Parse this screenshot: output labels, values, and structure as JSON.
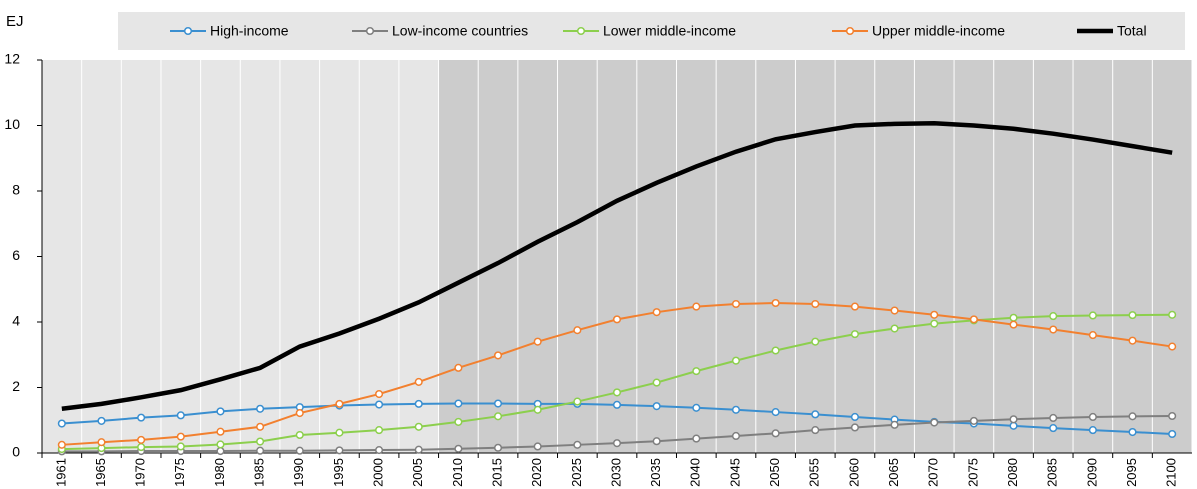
{
  "chart_data": {
    "type": "line",
    "y_label": "EJ",
    "categories": [
      "1961",
      "1965",
      "1970",
      "1975",
      "1980",
      "1985",
      "1990",
      "1995",
      "2000",
      "2005",
      "2010",
      "2015",
      "2020",
      "2025",
      "2030",
      "2035",
      "2040",
      "2045",
      "2050",
      "2055",
      "2060",
      "2065",
      "2070",
      "2075",
      "2080",
      "2085",
      "2090",
      "2095",
      "2100"
    ],
    "projection_from": "2010",
    "ylim": [
      0,
      12
    ],
    "yticks": [
      0,
      2,
      4,
      6,
      8,
      10,
      12
    ],
    "series": [
      {
        "name": "High-income",
        "color": "#3a8fd0",
        "marker": true,
        "values": [
          0.9,
          0.98,
          1.08,
          1.15,
          1.27,
          1.35,
          1.4,
          1.45,
          1.48,
          1.5,
          1.51,
          1.51,
          1.5,
          1.5,
          1.47,
          1.43,
          1.38,
          1.32,
          1.25,
          1.18,
          1.1,
          1.02,
          0.95,
          0.9,
          0.83,
          0.76,
          0.7,
          0.64,
          0.58
        ]
      },
      {
        "name": "Low-income countries",
        "color": "#7f7f7f",
        "marker": true,
        "values": [
          0.05,
          0.05,
          0.06,
          0.06,
          0.06,
          0.07,
          0.07,
          0.08,
          0.09,
          0.1,
          0.13,
          0.16,
          0.2,
          0.25,
          0.3,
          0.36,
          0.44,
          0.52,
          0.6,
          0.7,
          0.78,
          0.86,
          0.93,
          0.98,
          1.03,
          1.07,
          1.1,
          1.12,
          1.13
        ]
      },
      {
        "name": "Lower middle-income",
        "color": "#8ccf4d",
        "marker": true,
        "values": [
          0.12,
          0.15,
          0.18,
          0.2,
          0.26,
          0.35,
          0.55,
          0.62,
          0.7,
          0.8,
          0.95,
          1.12,
          1.32,
          1.57,
          1.85,
          2.15,
          2.5,
          2.82,
          3.13,
          3.4,
          3.63,
          3.8,
          3.95,
          4.05,
          4.13,
          4.18,
          4.2,
          4.21,
          4.22
        ]
      },
      {
        "name": "Upper middle-income",
        "color": "#f2802f",
        "marker": true,
        "values": [
          0.25,
          0.33,
          0.4,
          0.5,
          0.65,
          0.8,
          1.22,
          1.5,
          1.8,
          2.17,
          2.6,
          2.98,
          3.4,
          3.75,
          4.08,
          4.3,
          4.47,
          4.55,
          4.58,
          4.55,
          4.47,
          4.35,
          4.22,
          4.08,
          3.92,
          3.77,
          3.6,
          3.43,
          3.25
        ]
      },
      {
        "name": "Total",
        "color": "#000000",
        "marker": false,
        "values": [
          1.35,
          1.5,
          1.7,
          1.92,
          2.25,
          2.6,
          3.25,
          3.65,
          4.1,
          4.6,
          5.2,
          5.8,
          6.45,
          7.05,
          7.7,
          8.25,
          8.75,
          9.2,
          9.58,
          9.8,
          10.0,
          10.05,
          10.07,
          10.0,
          9.9,
          9.75,
          9.57,
          9.37,
          9.17
        ]
      }
    ]
  }
}
